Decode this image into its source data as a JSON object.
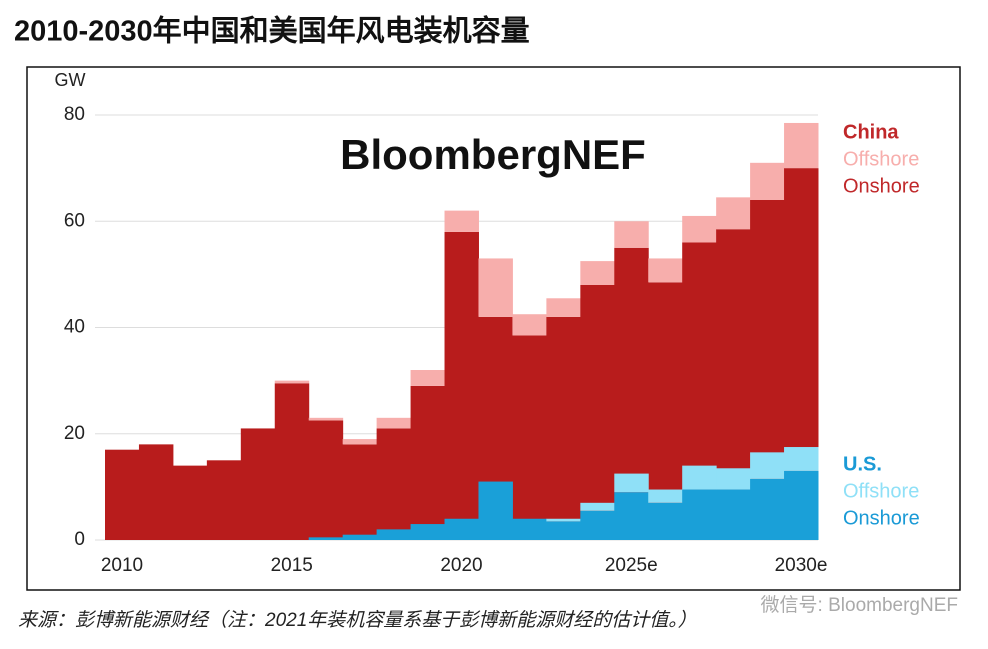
{
  "chart_data": {
    "type": "stacked-step",
    "title": "2010-2030年中国和美国年风电装机容量",
    "y_unit": "GW",
    "brand": "BloombergNEF",
    "source": "来源：彭博新能源财经（注：2021年装机容量系基于彭博新能源财经的估计值。）",
    "watermark": "微信号: BloombergNEF",
    "categories": [
      "2010",
      null,
      null,
      null,
      null,
      "2015",
      null,
      null,
      null,
      null,
      "2020",
      null,
      null,
      null,
      null,
      "2025e",
      null,
      null,
      null,
      null,
      "2030e"
    ],
    "ylim": [
      0,
      80
    ],
    "yticks": [
      0,
      20,
      40,
      60,
      80
    ],
    "grid": true,
    "groups": [
      {
        "name": "China",
        "color": "#c0282a",
        "series": [
          {
            "name": "Offshore",
            "color": "#f7aeac",
            "values": [
              0,
              0,
              0,
              0,
              0,
              0.5,
              0.5,
              1,
              2,
              3,
              4,
              11,
              4,
              3.5,
              4.5,
              5,
              4.5,
              5,
              6,
              7,
              8.5
            ]
          },
          {
            "name": "Onshore",
            "color": "#b81c1c",
            "values": [
              17,
              18,
              14,
              15,
              21,
              29.5,
              22.5,
              18,
              21,
              29,
              58,
              42,
              38.5,
              42,
              48,
              55,
              48.5,
              56,
              58.5,
              64,
              70
            ]
          }
        ]
      },
      {
        "name": "U.S.",
        "color": "#1a9ad6",
        "series": [
          {
            "name": "Offshore",
            "color": "#8fe0f7",
            "values": [
              0,
              0,
              0,
              0,
              0,
              0,
              0,
              0,
              0,
              0,
              0,
              0,
              0,
              0.5,
              1.5,
              3.5,
              2.5,
              4.5,
              4,
              5,
              4.5
            ]
          },
          {
            "name": "Onshore",
            "color": "#1aa0d8",
            "values": [
              0,
              0,
              0,
              0,
              0,
              0,
              0.5,
              1,
              2,
              3,
              4,
              11,
              4,
              3.5,
              5.5,
              9,
              7,
              9.5,
              9.5,
              11.5,
              13
            ]
          }
        ]
      }
    ]
  }
}
